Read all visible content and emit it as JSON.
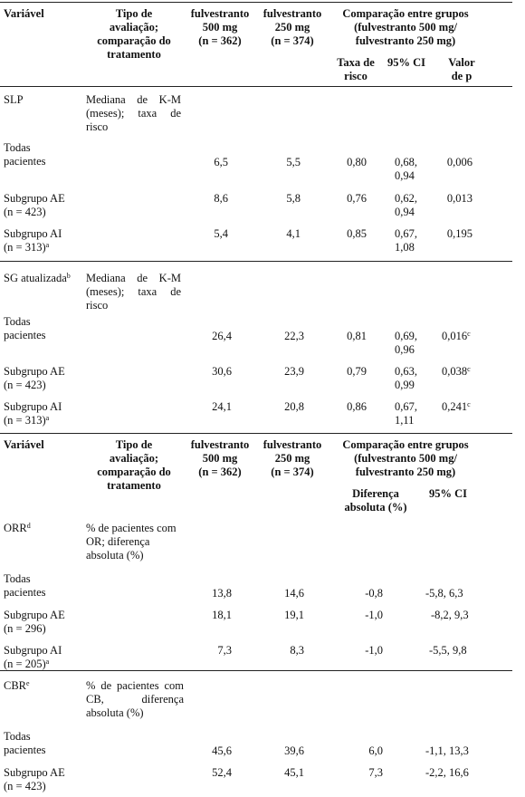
{
  "table1": {
    "header": {
      "variavel": "Variável",
      "tipo": [
        "Tipo de",
        "avaliação;",
        "comparação do",
        "tratamento"
      ],
      "f500": [
        "fulvestranto",
        "500 mg",
        "(n = 362)"
      ],
      "f250": [
        "fulvestranto",
        "250 mg",
        "(n = 374)"
      ],
      "comp": [
        "Comparação entre grupos",
        "(fulvestranto 500 mg/",
        "fulvestranto 250 mg)"
      ],
      "sub_taxa": [
        "Taxa de",
        "risco"
      ],
      "sub_ci": "95% CI",
      "sub_p": [
        "Valor",
        "de p"
      ]
    },
    "slp": {
      "label": "SLP",
      "tipo": "Mediana de K-M (meses); taxa de risco",
      "rows": [
        {
          "label": [
            "Todas",
            "pacientes"
          ],
          "f500": "6,5",
          "f250": "5,5",
          "hr": "0,80",
          "ci": [
            "0,68,",
            "0,94"
          ],
          "p": "0,006"
        },
        {
          "label": [
            "Subgrupo AE",
            "(n = 423)"
          ],
          "f500": "8,6",
          "f250": "5,8",
          "hr": "0,76",
          "ci": [
            "0,62,",
            "0,94"
          ],
          "p": "0,013"
        },
        {
          "label": [
            "Subgrupo AI",
            "(n = 313)"
          ],
          "sup": "a",
          "f500": "5,4",
          "f250": "4,1",
          "hr": "0,85",
          "ci": [
            "0,67,",
            "1,08"
          ],
          "p": "0,195"
        }
      ]
    },
    "sg": {
      "label": "SG atualizada",
      "label_sup": "b",
      "tipo": "Mediana de K-M (meses); taxa de risco",
      "rows": [
        {
          "label": [
            "Todas",
            "pacientes"
          ],
          "f500": "26,4",
          "f250": "22,3",
          "hr": "0,81",
          "ci": [
            "0,69,",
            "0,96"
          ],
          "p": "0,016",
          "p_sup": "c"
        },
        {
          "label": [
            "Subgrupo AE",
            "(n = 423)"
          ],
          "f500": "30,6",
          "f250": "23,9",
          "hr": "0,79",
          "ci": [
            "0,63,",
            "0,99"
          ],
          "p": "0,038",
          "p_sup": "c"
        },
        {
          "label": [
            "Subgrupo AI",
            "(n = 313)"
          ],
          "sup": "a",
          "f500": "24,1",
          "f250": "20,8",
          "hr": "0,86",
          "ci": [
            "0,67,",
            "1,11"
          ],
          "p": "0,241",
          "p_sup": "c"
        }
      ]
    }
  },
  "table2": {
    "header": {
      "variavel": "Variável",
      "tipo": [
        "Tipo de",
        "avaliação;",
        "comparação do",
        "tratamento"
      ],
      "f500": [
        "fulvestranto",
        "500 mg",
        "(n = 362)"
      ],
      "f250": [
        "fulvestranto",
        "250 mg",
        "(n = 374)"
      ],
      "comp": [
        "Comparação entre grupos",
        "(fulvestranto 500 mg/",
        "fulvestranto 250 mg)"
      ],
      "sub_diff": [
        "Diferença",
        "absoluta (%)"
      ],
      "sub_ci": "95% CI"
    },
    "orr": {
      "label": "ORR",
      "label_sup": "d",
      "tipo": "% de pacientes com OR; diferença absoluta (%)",
      "rows": [
        {
          "label": [
            "Todas",
            "pacientes"
          ],
          "f500": "13,8",
          "f250": "14,6",
          "diff": "-0,8",
          "ci": "-5,8, 6,3"
        },
        {
          "label": [
            "Subgrupo AE",
            "(n = 296)"
          ],
          "f500": "18,1",
          "f250": "19,1",
          "diff": "-1,0",
          "ci": "-8,2, 9,3"
        },
        {
          "label": [
            "Subgrupo AI",
            "(n = 205)"
          ],
          "sup": "a",
          "f500": "7,3",
          "f250": "8,3",
          "diff": "-1,0",
          "ci": "-5,5, 9,8"
        }
      ]
    },
    "cbr": {
      "label": "CBR",
      "label_sup": "e",
      "tipo": "% de pacientes com CB, diferença absoluta (%)",
      "rows": [
        {
          "label": [
            "Todas",
            "pacientes"
          ],
          "f500": "45,6",
          "f250": "39,6",
          "diff": "6,0",
          "ci": "-1,1, 13,3"
        },
        {
          "label": [
            "Subgrupo AE",
            "(n = 423)"
          ],
          "f500": "52,4",
          "f250": "45,1",
          "diff": "7,3",
          "ci": "-2,2, 16,6"
        }
      ]
    }
  }
}
